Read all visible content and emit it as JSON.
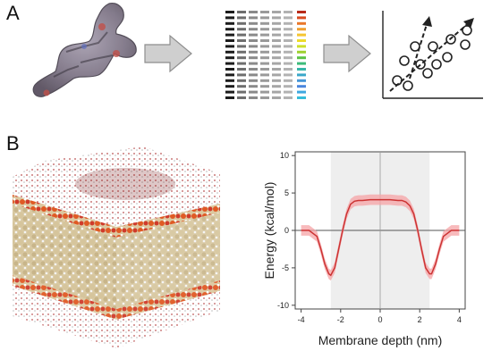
{
  "panels": {
    "a_label": "A",
    "b_label": "B"
  },
  "colors": {
    "arrow_fill": "#cfcfcf",
    "energy_line": "#cc3333",
    "energy_band": "#f5a3a6",
    "membrane_shade": "#eeeeee"
  },
  "descriptor_matrix": {
    "rows": 16,
    "gray_columns": 6,
    "color_scale": [
      "#b82a1a",
      "#d94a20",
      "#e9772a",
      "#f0a030",
      "#f5c531",
      "#eeda2b",
      "#cde02a",
      "#9fd130",
      "#5cc244",
      "#3dbb7a",
      "#36b5a8",
      "#3aa7c9",
      "#4596d6",
      "#4a86dd",
      "#3fa7e0",
      "#35bcd9"
    ]
  },
  "chart_data": {
    "type": "line",
    "title": "",
    "xlabel": "Membrane depth (nm)",
    "ylabel": "Energy (kcal/mol)",
    "xlim": [
      -4.3,
      4.3
    ],
    "ylim": [
      -10.5,
      10.5
    ],
    "xticks": [
      -4,
      -2,
      0,
      2,
      4
    ],
    "yticks": [
      -10,
      -5,
      0,
      5,
      10
    ],
    "shaded_region": [
      -2.5,
      2.5
    ],
    "grid": false,
    "series": [
      {
        "x": [
          -4.0,
          -3.6,
          -3.2,
          -3.0,
          -2.8,
          -2.6,
          -2.5,
          -2.3,
          -2.1,
          -1.9,
          -1.7,
          -1.5,
          -1.3,
          -1.1,
          -0.9,
          -0.5,
          0.0,
          0.5,
          0.9,
          1.1,
          1.3,
          1.5,
          1.7,
          1.9,
          2.1,
          2.3,
          2.5,
          2.6,
          2.8,
          3.0,
          3.2,
          3.6,
          4.0
        ],
        "y": [
          0.0,
          0.0,
          -0.8,
          -2.5,
          -4.5,
          -5.8,
          -6.0,
          -5.0,
          -2.5,
          0.0,
          2.2,
          3.5,
          3.9,
          4.0,
          4.0,
          4.1,
          4.1,
          4.1,
          4.0,
          4.0,
          3.8,
          3.3,
          2.2,
          0.0,
          -2.6,
          -5.0,
          -5.8,
          -5.8,
          -4.5,
          -2.5,
          -0.8,
          0.0,
          0.0
        ],
        "band": 0.7
      }
    ]
  }
}
